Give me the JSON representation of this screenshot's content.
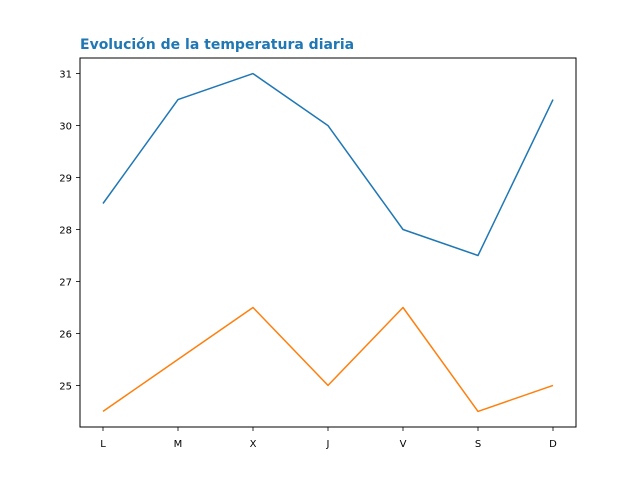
{
  "chart_data": {
    "type": "line",
    "title": "Evolución de la temperatura diaria",
    "xlabel": "",
    "ylabel": "",
    "categories": [
      "L",
      "M",
      "X",
      "J",
      "V",
      "S",
      "D"
    ],
    "ylim": [
      24.2,
      31.3
    ],
    "yticks": [
      25,
      26,
      27,
      28,
      29,
      30,
      31
    ],
    "grid": false,
    "series": [
      {
        "color": "#1f77b4",
        "values": [
          28.5,
          30.5,
          31.0,
          30.0,
          28.0,
          27.5,
          30.5
        ]
      },
      {
        "color": "#ff7f0e",
        "values": [
          24.5,
          25.5,
          26.5,
          25.0,
          26.5,
          24.5,
          25.0
        ]
      }
    ],
    "title_color": "#1f77b4"
  }
}
